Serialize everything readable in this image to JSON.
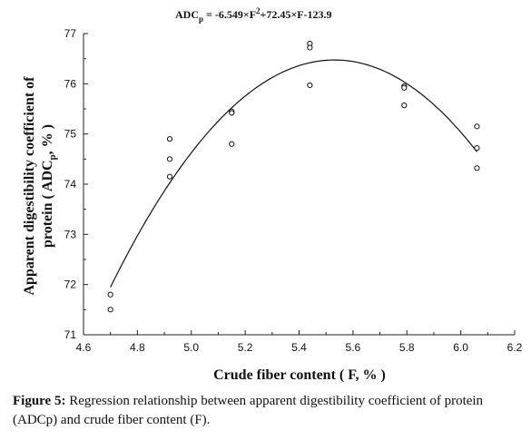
{
  "equation": {
    "prefix": "ADC",
    "sub": "p",
    "mid": " = -6.549×F",
    "sup": "2",
    "suffix": "+72.45×F-123.9"
  },
  "ylabel": {
    "line1": "Apparent digestibility coefficient of",
    "line2_a": "protein ( ADC",
    "line2_sub": "p",
    "line2_b": ", % )"
  },
  "caption": {
    "label": "Figure 5:",
    "text": " Regression relationship between apparent digestibility coefficient of protein (ADCp) and crude fiber content (F)."
  },
  "chart_data": {
    "type": "scatter",
    "xlabel": "Crude fiber content ( F, % )",
    "xlim": [
      4.6,
      6.2
    ],
    "ylim": [
      71,
      77
    ],
    "xticks": [
      "4.6",
      "4.8",
      "5.0",
      "5.2",
      "5.4",
      "5.6",
      "5.8",
      "6.0",
      "6.2"
    ],
    "yticks": [
      "71",
      "72",
      "73",
      "74",
      "75",
      "76",
      "77"
    ],
    "points": [
      {
        "x": 4.7,
        "y": 71.8
      },
      {
        "x": 4.7,
        "y": 71.5
      },
      {
        "x": 4.92,
        "y": 74.9
      },
      {
        "x": 4.92,
        "y": 74.5
      },
      {
        "x": 4.92,
        "y": 74.15
      },
      {
        "x": 5.15,
        "y": 75.45
      },
      {
        "x": 5.15,
        "y": 75.42
      },
      {
        "x": 5.15,
        "y": 74.8
      },
      {
        "x": 5.44,
        "y": 76.8
      },
      {
        "x": 5.44,
        "y": 76.72
      },
      {
        "x": 5.44,
        "y": 75.97
      },
      {
        "x": 5.79,
        "y": 75.95
      },
      {
        "x": 5.79,
        "y": 75.92
      },
      {
        "x": 5.79,
        "y": 75.57
      },
      {
        "x": 6.06,
        "y": 75.15
      },
      {
        "x": 6.06,
        "y": 74.72
      },
      {
        "x": 6.06,
        "y": 74.32
      }
    ],
    "fit": {
      "a": -6.549,
      "b": 72.45,
      "c": -123.9,
      "x_range": [
        4.7,
        6.06
      ]
    }
  }
}
